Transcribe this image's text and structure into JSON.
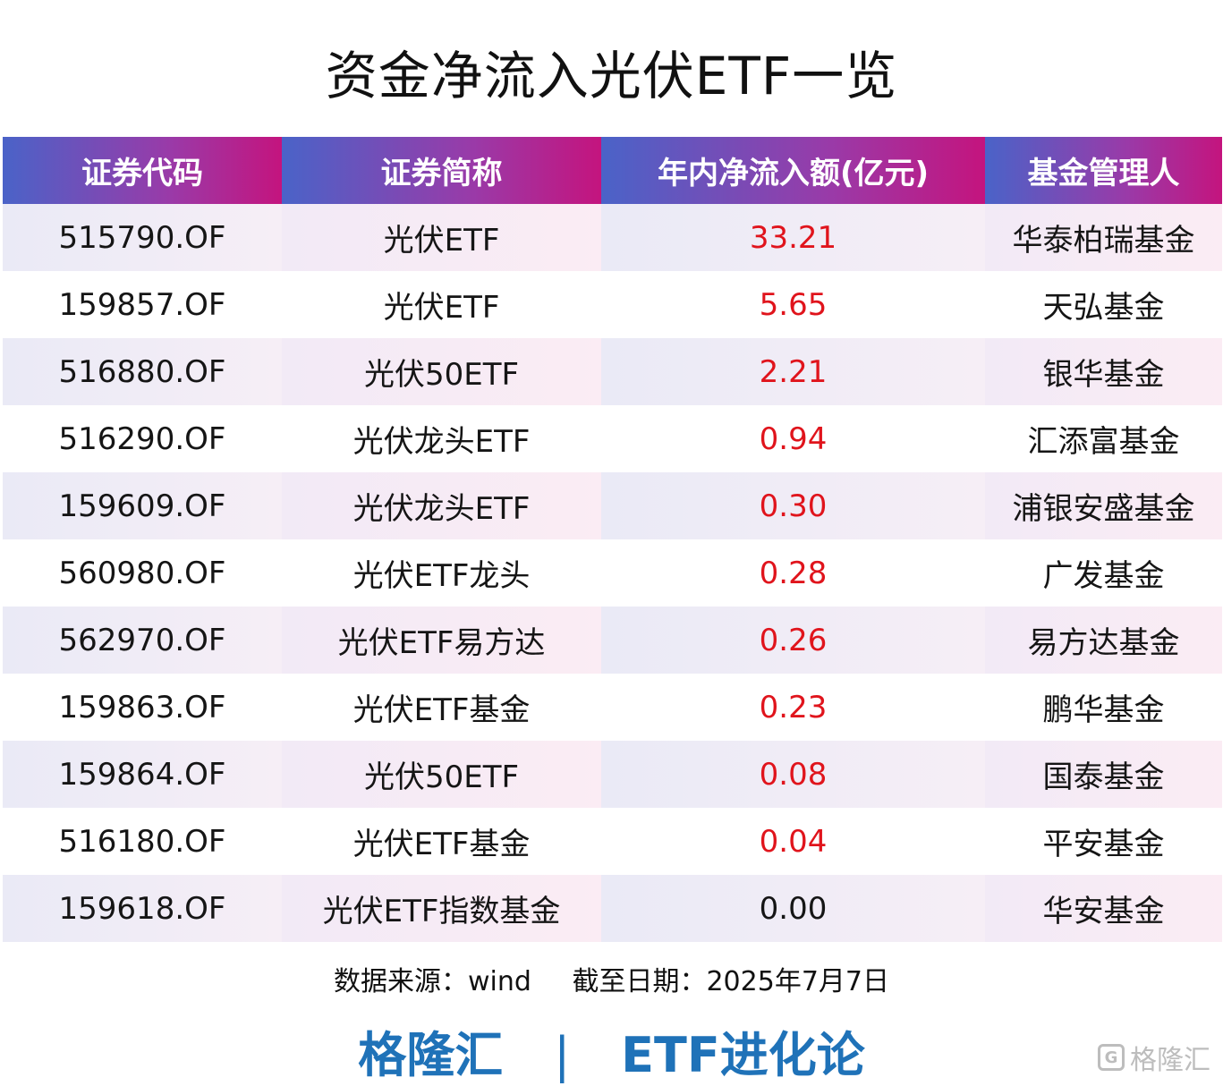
{
  "chart_data": {
    "type": "table",
    "title": "资金净流入光伏ETF一览",
    "columns": [
      "证券代码",
      "证券简称",
      "年内净流入额(亿元)",
      "基金管理人"
    ],
    "rows": [
      {
        "code": "515790.OF",
        "name": "光伏ETF",
        "inflow": "33.21",
        "manager": "华泰柏瑞基金"
      },
      {
        "code": "159857.OF",
        "name": "光伏ETF",
        "inflow": "5.65",
        "manager": "天弘基金"
      },
      {
        "code": "516880.OF",
        "name": "光伏50ETF",
        "inflow": "2.21",
        "manager": "银华基金"
      },
      {
        "code": "516290.OF",
        "name": "光伏龙头ETF",
        "inflow": "0.94",
        "manager": "汇添富基金"
      },
      {
        "code": "159609.OF",
        "name": "光伏龙头ETF",
        "inflow": "0.30",
        "manager": "浦银安盛基金"
      },
      {
        "code": "560980.OF",
        "name": "光伏ETF龙头",
        "inflow": "0.28",
        "manager": "广发基金"
      },
      {
        "code": "562970.OF",
        "name": "光伏ETF易方达",
        "inflow": "0.26",
        "manager": "易方达基金"
      },
      {
        "code": "159863.OF",
        "name": "光伏ETF基金",
        "inflow": "0.23",
        "manager": "鹏华基金"
      },
      {
        "code": "159864.OF",
        "name": "光伏50ETF",
        "inflow": "0.08",
        "manager": "国泰基金"
      },
      {
        "code": "516180.OF",
        "name": "光伏ETF基金",
        "inflow": "0.04",
        "manager": "平安基金"
      },
      {
        "code": "159618.OF",
        "name": "光伏ETF指数基金",
        "inflow": "0.00",
        "manager": "华安基金"
      }
    ]
  },
  "footer": {
    "source": "数据来源：wind",
    "date": "截至日期：2025年7月7日"
  },
  "brand": {
    "left": "格隆汇",
    "sep": "|",
    "right": "ETF进化论"
  },
  "watermark": {
    "logo": "G",
    "text": "格隆汇"
  },
  "colors": {
    "positive": "#e0141c",
    "brand": "#1f72b8",
    "header_start": "#4a63c8",
    "header_end": "#c4147e"
  }
}
